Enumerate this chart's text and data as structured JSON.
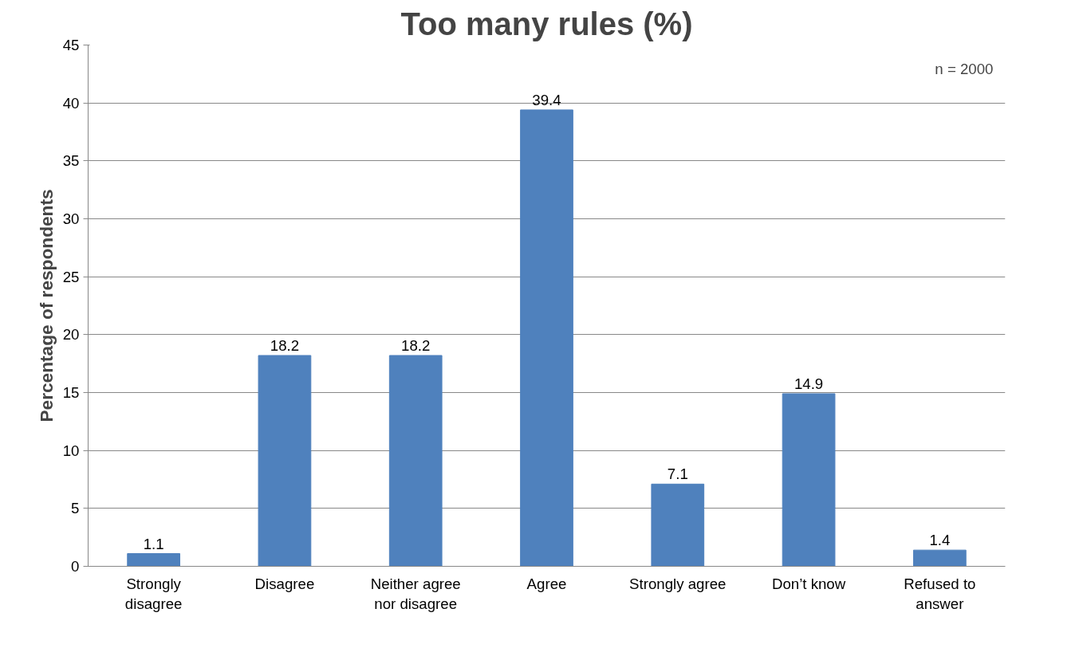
{
  "chart_data": {
    "type": "bar",
    "title": "Too many rules (%)",
    "ylabel": "Percentage of respondents",
    "categories": [
      "Strongly\ndisagree",
      "Disagree",
      "Neither agree\nnor disagree",
      "Agree",
      "Strongly agree",
      "Don’t know",
      "Refused to\nanswer"
    ],
    "values": [
      1.1,
      18.2,
      18.2,
      39.4,
      7.1,
      14.9,
      1.4
    ],
    "color": "#4f81bd",
    "ylim": [
      0,
      45
    ],
    "yticks": [
      0,
      5,
      10,
      15,
      20,
      25,
      30,
      35,
      40,
      45
    ],
    "grid": "y",
    "data_labels": true,
    "annotations": [
      "n = 2000"
    ]
  }
}
